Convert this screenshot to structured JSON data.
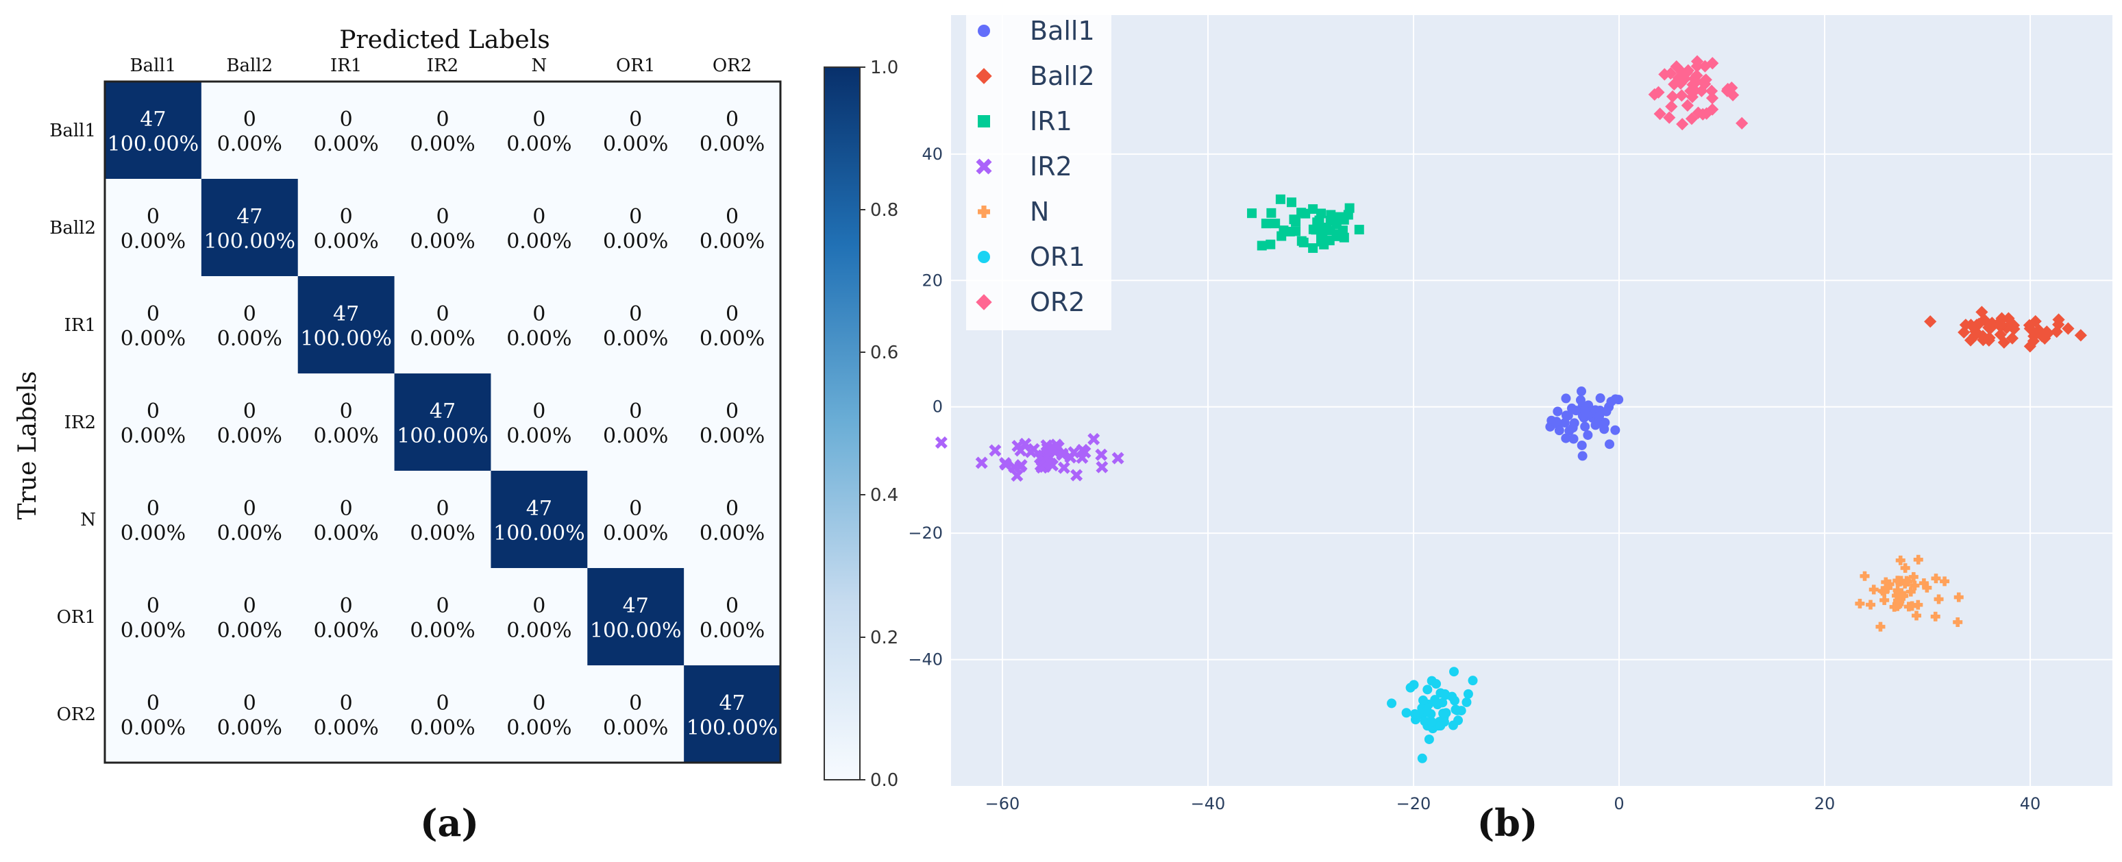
{
  "chart_data": [
    {
      "type": "heatmap",
      "panel_label": "(a)",
      "title": "Predicted Labels",
      "xlabel": "Predicted Labels",
      "ylabel": "True Labels",
      "x_labels": [
        "Ball1",
        "Ball2",
        "IR1",
        "IR2",
        "N",
        "OR1",
        "OR2"
      ],
      "y_labels": [
        "Ball1",
        "Ball2",
        "IR1",
        "IR2",
        "N",
        "OR1",
        "OR2"
      ],
      "counts": [
        [
          47,
          0,
          0,
          0,
          0,
          0,
          0
        ],
        [
          0,
          47,
          0,
          0,
          0,
          0,
          0
        ],
        [
          0,
          0,
          47,
          0,
          0,
          0,
          0
        ],
        [
          0,
          0,
          0,
          47,
          0,
          0,
          0
        ],
        [
          0,
          0,
          0,
          0,
          47,
          0,
          0
        ],
        [
          0,
          0,
          0,
          0,
          0,
          47,
          0
        ],
        [
          0,
          0,
          0,
          0,
          0,
          0,
          47
        ]
      ],
      "percents": [
        [
          "100.00%",
          "0.00%",
          "0.00%",
          "0.00%",
          "0.00%",
          "0.00%",
          "0.00%"
        ],
        [
          "0.00%",
          "100.00%",
          "0.00%",
          "0.00%",
          "0.00%",
          "0.00%",
          "0.00%"
        ],
        [
          "0.00%",
          "0.00%",
          "100.00%",
          "0.00%",
          "0.00%",
          "0.00%",
          "0.00%"
        ],
        [
          "0.00%",
          "0.00%",
          "0.00%",
          "100.00%",
          "0.00%",
          "0.00%",
          "0.00%"
        ],
        [
          "0.00%",
          "0.00%",
          "0.00%",
          "0.00%",
          "100.00%",
          "0.00%",
          "0.00%"
        ],
        [
          "0.00%",
          "0.00%",
          "0.00%",
          "0.00%",
          "0.00%",
          "100.00%",
          "0.00%"
        ],
        [
          "0.00%",
          "0.00%",
          "0.00%",
          "0.00%",
          "0.00%",
          "0.00%",
          "100.00%"
        ]
      ],
      "colorbar": {
        "min": 0.0,
        "max": 1.0,
        "ticks": [
          "0.0",
          "0.2",
          "0.4",
          "0.6",
          "0.8",
          "1.0"
        ],
        "low_color": "#f7fbff",
        "high_color": "#08306b"
      }
    },
    {
      "type": "scatter",
      "panel_label": "(b)",
      "xlim": [
        -65,
        48
      ],
      "ylim": [
        -60,
        62
      ],
      "x_ticks": [
        "−60",
        "−40",
        "−20",
        "0",
        "20",
        "40"
      ],
      "y_ticks": [
        "−40",
        "−20",
        "0",
        "20",
        "40"
      ],
      "legend_position": "top-left",
      "background": "#e5ecf6",
      "series": [
        {
          "name": "Ball1",
          "symbol": "circle",
          "color": "#636efa",
          "center": [
            -3,
            -2
          ],
          "spread": [
            1.8,
            2.2
          ]
        },
        {
          "name": "Ball2",
          "symbol": "diamond",
          "color": "#ef553b",
          "center": [
            37.5,
            12
          ],
          "spread": [
            3.5,
            1.2
          ]
        },
        {
          "name": "IR1",
          "symbol": "square",
          "color": "#00cc96",
          "center": [
            -30,
            28.5
          ],
          "spread": [
            2.5,
            2.0
          ]
        },
        {
          "name": "IR2",
          "symbol": "x",
          "color": "#ab63fa",
          "center": [
            -55.5,
            -7.5
          ],
          "spread": [
            3.0,
            1.6
          ]
        },
        {
          "name": "N",
          "symbol": "cross",
          "color": "#ffa15a",
          "center": [
            27.5,
            -29.5
          ],
          "spread": [
            2.0,
            2.3
          ]
        },
        {
          "name": "OR1",
          "symbol": "circle",
          "color": "#19d3f3",
          "center": [
            -17.5,
            -47.5
          ],
          "spread": [
            1.6,
            2.4
          ]
        },
        {
          "name": "OR2",
          "symbol": "diamond",
          "color": "#ff6692",
          "center": [
            7,
            50
          ],
          "spread": [
            2.2,
            2.0
          ]
        }
      ]
    }
  ]
}
